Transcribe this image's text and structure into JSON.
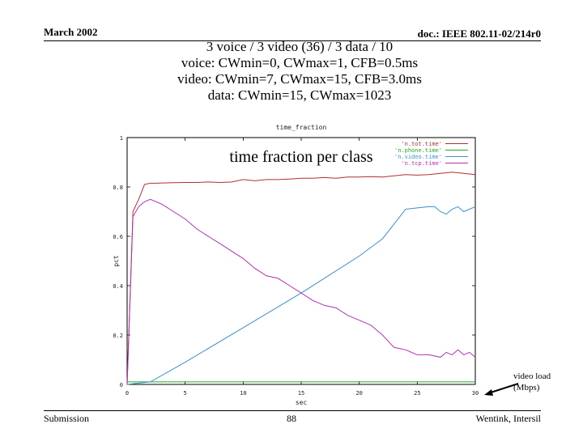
{
  "header": {
    "date": "March 2002",
    "doc": "doc.: IEEE 802.11-02/214r0"
  },
  "titles": [
    "3 voice / 3 video (36) / 3 data / 10",
    "voice: CWmin=0, CWmax=1, CFB=0.5ms",
    "video: CWmin=7, CWmax=15, CFB=3.0ms",
    "data: CWmin=15, CWmax=1023"
  ],
  "footer": {
    "left": "Submission",
    "page": "88",
    "author": "Wentink, Intersil"
  },
  "colors": {
    "tot": "#b03030",
    "phone": "#22aa22",
    "video": "#3a8fd0",
    "tcp": "#b030b0",
    "axis": "#000000"
  },
  "chart_data": {
    "type": "line",
    "title": "time_fraction",
    "overlay_title": "time fraction per class",
    "xlabel": "sec",
    "ylabel": "pct",
    "xlim": [
      0,
      30
    ],
    "ylim": [
      0,
      1
    ],
    "xticks": [
      0,
      5,
      10,
      15,
      20,
      25,
      30
    ],
    "xtick_labels": [
      "0",
      "5",
      "10",
      "15",
      "20",
      "25",
      "30"
    ],
    "yticks": [
      0,
      0.2,
      0.4,
      0.6,
      0.8,
      1
    ],
    "ytick_labels": [
      "0",
      "0.2",
      "0.4",
      "0.6",
      "0.8",
      "1"
    ],
    "annotation": {
      "line1": "video load",
      "line2": "(Mbps)"
    },
    "series": [
      {
        "name": "'n.tot.time'",
        "color_key": "tot",
        "x": [
          0,
          0.5,
          1,
          1.5,
          2,
          2.5,
          3,
          4,
          5,
          6,
          7,
          8,
          9,
          10,
          11,
          12,
          13,
          14,
          15,
          16,
          17,
          18,
          19,
          20,
          21,
          22,
          23,
          24,
          25,
          26,
          27,
          28,
          29,
          30
        ],
        "y": [
          0,
          0.7,
          0.75,
          0.81,
          0.815,
          0.815,
          0.816,
          0.817,
          0.818,
          0.818,
          0.82,
          0.818,
          0.82,
          0.83,
          0.825,
          0.83,
          0.83,
          0.832,
          0.835,
          0.835,
          0.838,
          0.835,
          0.84,
          0.84,
          0.842,
          0.84,
          0.845,
          0.85,
          0.848,
          0.85,
          0.855,
          0.86,
          0.855,
          0.85
        ]
      },
      {
        "name": "'n.phone.time'",
        "color_key": "phone",
        "x": [
          0,
          1,
          5,
          10,
          15,
          20,
          25,
          30
        ],
        "y": [
          0.01,
          0.01,
          0.01,
          0.01,
          0.01,
          0.01,
          0.01,
          0.01
        ]
      },
      {
        "name": "'n.video.time'",
        "color_key": "video",
        "x": [
          0,
          2,
          5,
          10,
          15,
          20,
          22,
          23,
          24,
          25,
          26,
          26.5,
          27,
          27.5,
          28,
          28.5,
          29,
          29.5,
          30
        ],
        "y": [
          0,
          0.01,
          0.09,
          0.23,
          0.37,
          0.52,
          0.59,
          0.65,
          0.71,
          0.715,
          0.72,
          0.72,
          0.7,
          0.69,
          0.71,
          0.72,
          0.7,
          0.71,
          0.72
        ]
      },
      {
        "name": "'n.tcp.time'",
        "color_key": "tcp",
        "x": [
          0,
          0.5,
          1,
          1.5,
          2,
          3,
          4,
          5,
          6,
          7,
          8,
          9,
          10,
          11,
          12,
          13,
          14,
          15,
          16,
          17,
          18,
          19,
          20,
          21,
          22,
          23,
          24,
          25,
          26,
          27,
          27.5,
          28,
          28.5,
          29,
          29.5,
          30
        ],
        "y": [
          0,
          0.68,
          0.72,
          0.74,
          0.75,
          0.73,
          0.7,
          0.67,
          0.63,
          0.6,
          0.57,
          0.54,
          0.51,
          0.47,
          0.44,
          0.43,
          0.4,
          0.37,
          0.34,
          0.32,
          0.31,
          0.28,
          0.26,
          0.24,
          0.2,
          0.15,
          0.14,
          0.12,
          0.12,
          0.11,
          0.13,
          0.12,
          0.14,
          0.12,
          0.13,
          0.11
        ]
      }
    ]
  }
}
